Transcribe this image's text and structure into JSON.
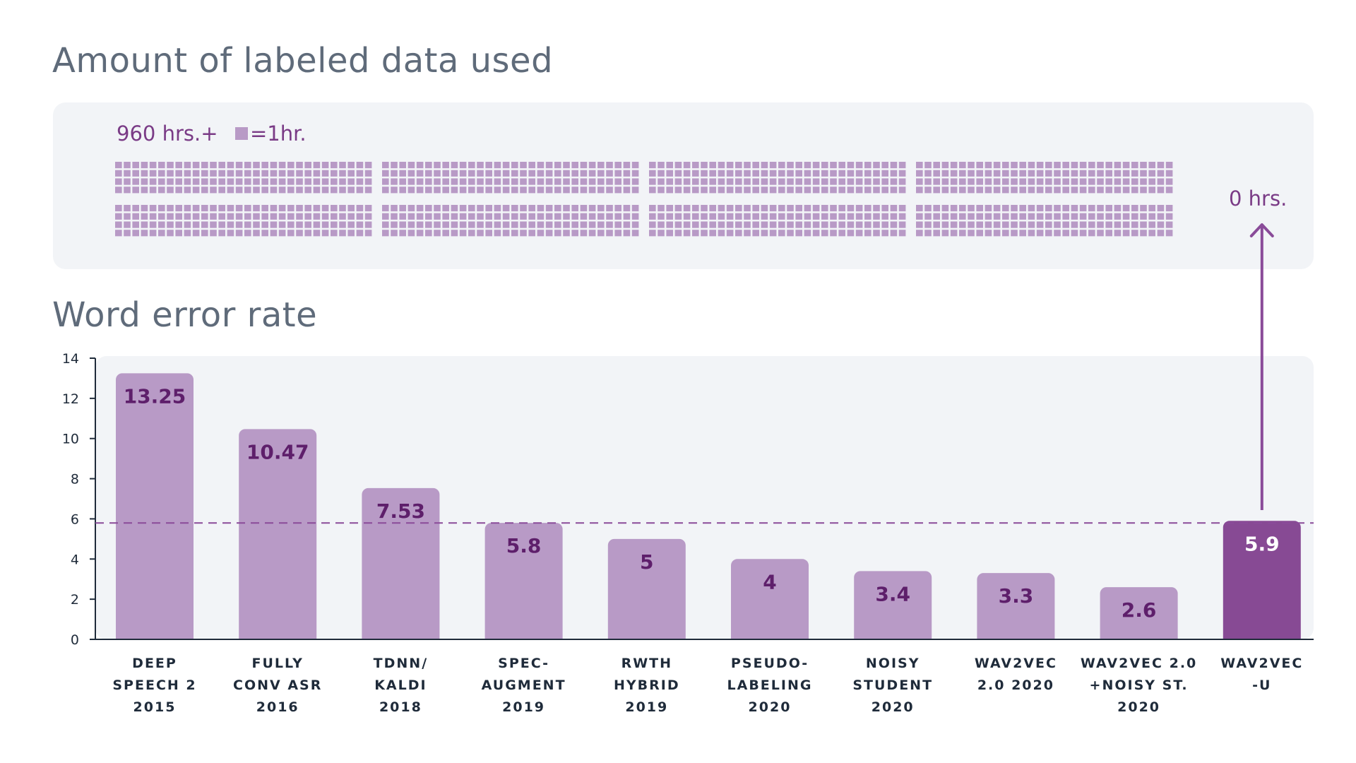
{
  "titles": {
    "labeled_data": "Amount of labeled data used",
    "wer": "Word error rate"
  },
  "legend": {
    "hours_label": "960 hrs.+",
    "unit_label": "=1hr.",
    "zero_label": "0 hrs."
  },
  "colors": {
    "bar": "#b89ac6",
    "bar_highlight": "#874a94",
    "label_dark": "#5e1f6b",
    "label_light": "#ffffff",
    "square": "#b89ac6",
    "dashed_line": "#8a4b99",
    "arrow": "#8a4b99",
    "panel_bg": "#f2f4f7",
    "axis": "#1f2b3a"
  },
  "chart_data": {
    "type": "bar",
    "title": "Word error rate",
    "xlabel": "",
    "ylabel": "",
    "ylim": [
      0,
      14
    ],
    "yticks": [
      0,
      2,
      4,
      6,
      8,
      10,
      12,
      14
    ],
    "reference_line": 5.9,
    "categories": [
      [
        "DEEP",
        "SPEECH 2",
        "2015"
      ],
      [
        "FULLY",
        "CONV ASR",
        "2016"
      ],
      [
        "TDNN/",
        "KALDI",
        "2018"
      ],
      [
        "SPEC-",
        "AUGMENT",
        "2019"
      ],
      [
        "RWTH",
        "HYBRID",
        "2019"
      ],
      [
        "PSEUDO-",
        "LABELING",
        "2020"
      ],
      [
        "NOISY",
        "STUDENT",
        "2020"
      ],
      [
        "WAV2VEC",
        "2.0 2020"
      ],
      [
        "WAV2VEC 2.0",
        "+NOISY ST.",
        "2020"
      ],
      [
        "WAV2VEC",
        "-U"
      ]
    ],
    "values": [
      13.25,
      10.47,
      7.53,
      5.8,
      5,
      4,
      3.4,
      3.3,
      2.6,
      5.9
    ],
    "value_labels": [
      "13.25",
      "10.47",
      "7.53",
      "5.8",
      "5",
      "4",
      "3.4",
      "3.3",
      "2.6",
      "5.9"
    ],
    "highlight_index": 9,
    "labeled_hours": {
      "square_unit_hours": 1,
      "squares_per_block": 120,
      "blocks": 8,
      "total_hours_label": "960 hrs.+",
      "wav2vec_u_hours": 0
    }
  }
}
